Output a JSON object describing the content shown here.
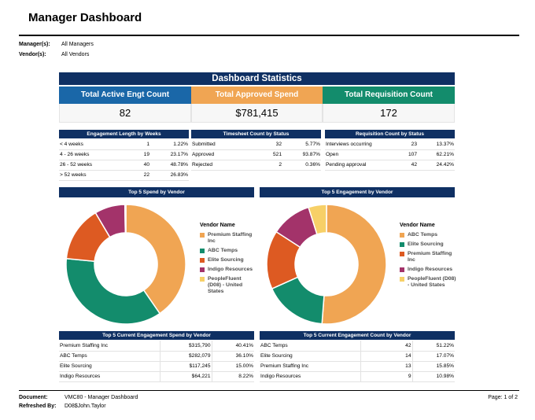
{
  "header": {
    "title": "Manager Dashboard",
    "manager_label": "Manager(s):",
    "manager_value": "All Managers",
    "vendor_label": "Vendor(s):",
    "vendor_value": "All Vendors"
  },
  "stats": {
    "title": "Dashboard Statistics",
    "kpis": [
      {
        "label": "Total Active Engt Count",
        "value": "82",
        "color": "#1a67a8"
      },
      {
        "label": "Total Approved Spend",
        "value": "$781,415",
        "color": "#f0a553"
      },
      {
        "label": "Total Requisition Count",
        "value": "172",
        "color": "#138c6c"
      }
    ]
  },
  "tables": {
    "engagement": {
      "title": "Engagement Length by Weeks",
      "rows": [
        [
          "< 4 weeks",
          "1",
          "1.22%"
        ],
        [
          "4 - 26 weeks",
          "19",
          "23.17%"
        ],
        [
          "26 - 52 weeks",
          "40",
          "48.78%"
        ],
        [
          "> 52 weeks",
          "22",
          "26.83%"
        ]
      ]
    },
    "timesheet": {
      "title": "Timesheet Count by Status",
      "rows": [
        [
          "Submitted",
          "32",
          "5.77%"
        ],
        [
          "Approved",
          "521",
          "93.87%"
        ],
        [
          "Rejected",
          "2",
          "0.36%"
        ]
      ]
    },
    "requisition": {
      "title": "Requisition Count by Status",
      "rows": [
        [
          "Interviews occurring",
          "23",
          "13.37%"
        ],
        [
          "Open",
          "107",
          "62.21%"
        ],
        [
          "Pending approval",
          "42",
          "24.42%"
        ]
      ]
    }
  },
  "charts": {
    "spend_title": "Top 5 Spend by Vendor",
    "engagement_title": "Top 5 Engagement by Vendor",
    "legend_title": "Vendor Name",
    "spend_legend": [
      {
        "label": "Premium Staffing Inc",
        "color": "#f0a553"
      },
      {
        "label": "ABC Temps",
        "color": "#138c6c"
      },
      {
        "label": "Elite Sourcing",
        "color": "#dd5a22"
      },
      {
        "label": "Indigo Resources",
        "color": "#a3336a"
      },
      {
        "label": "PeopleFluent (D08) - United States",
        "color": "#f7d067"
      }
    ],
    "engagement_legend": [
      {
        "label": "ABC Temps",
        "color": "#f0a553"
      },
      {
        "label": "Elite Sourcing",
        "color": "#138c6c"
      },
      {
        "label": "Premium Staffing Inc",
        "color": "#dd5a22"
      },
      {
        "label": "Indigo Resources",
        "color": "#a3336a"
      },
      {
        "label": "PeopleFluent (D08) - United States",
        "color": "#f7d067"
      }
    ]
  },
  "chart_data": [
    {
      "type": "pie",
      "title": "Top 5 Spend by Vendor",
      "categories": [
        "Premium Staffing Inc",
        "ABC Temps",
        "Elite Sourcing",
        "Indigo Resources",
        "PeopleFluent (D08) - United States"
      ],
      "values": [
        40.41,
        36.1,
        15.0,
        8.22,
        0.27
      ],
      "colors": [
        "#f0a553",
        "#138c6c",
        "#dd5a22",
        "#a3336a",
        "#f7d067"
      ]
    },
    {
      "type": "pie",
      "title": "Top 5 Engagement by Vendor",
      "categories": [
        "ABC Temps",
        "Elite Sourcing",
        "Premium Staffing Inc",
        "Indigo Resources",
        "PeopleFluent (D08) - United States"
      ],
      "values": [
        51.22,
        17.07,
        15.85,
        10.98,
        4.88
      ],
      "colors": [
        "#f0a553",
        "#138c6c",
        "#dd5a22",
        "#a3336a",
        "#f7d067"
      ]
    }
  ],
  "bottom": {
    "spend": {
      "title": "Top 5 Current Engagement Spend by Vendor",
      "rows": [
        [
          "Premium Staffing Inc",
          "$315,790",
          "40.41%"
        ],
        [
          "ABC Temps",
          "$282,079",
          "36.10%"
        ],
        [
          "Elite Sourcing",
          "$117,245",
          "15.00%"
        ],
        [
          "Indigo Resources",
          "$64,221",
          "8.22%"
        ]
      ]
    },
    "count": {
      "title": "Top 5 Current Engagement Count by Vendor",
      "rows": [
        [
          "ABC Temps",
          "42",
          "51.22%"
        ],
        [
          "Elite Sourcing",
          "14",
          "17.07%"
        ],
        [
          "Premium Staffing Inc",
          "13",
          "15.85%"
        ],
        [
          "Indigo Resources",
          "9",
          "10.98%"
        ]
      ]
    }
  },
  "footer": {
    "document_label": "Document:",
    "document_value": "VMC80 - Manager Dashboard",
    "refreshed_label": "Refreshed By:",
    "refreshed_value": "D08$John.Taylor",
    "page": "Page: 1 of 2"
  }
}
